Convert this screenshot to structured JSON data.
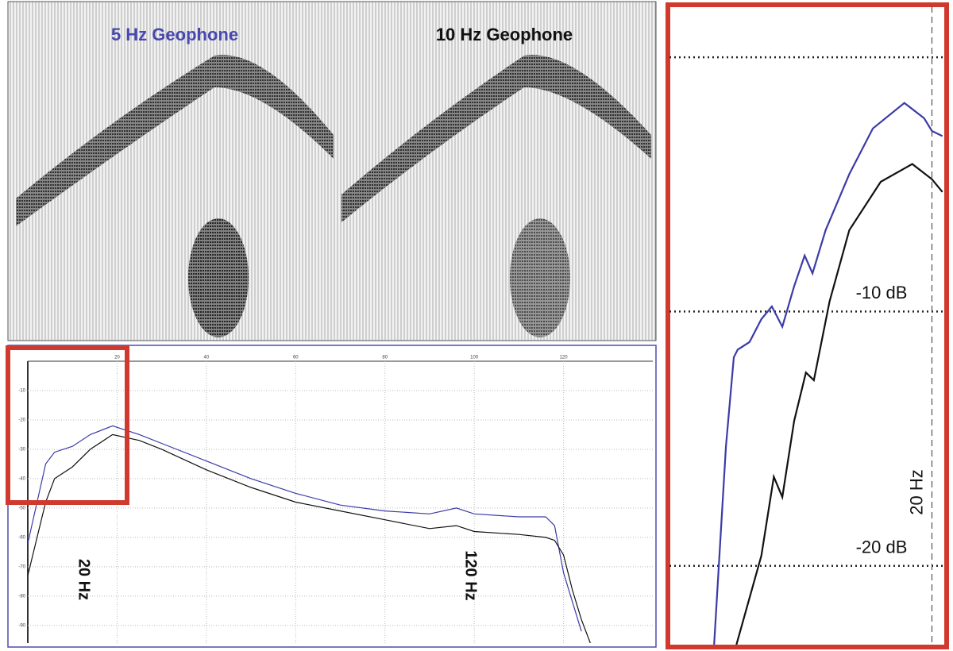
{
  "seismic": {
    "panels": [
      "5 Hz Geophone",
      "10 Hz Geophone"
    ]
  },
  "chart_data": [
    {
      "type": "line",
      "xlim": [
        0,
        140
      ],
      "xticks": [
        20,
        40,
        60,
        80,
        100,
        120
      ],
      "ylim": [
        -96,
        0
      ],
      "yticks": [
        -10,
        -20,
        -30,
        -40,
        -50,
        -60,
        -70,
        -80,
        -90
      ],
      "grid": true,
      "annotations": [
        "20 Hz",
        "120 Hz"
      ],
      "x": [
        0,
        4,
        6,
        10,
        14,
        19,
        25,
        30,
        40,
        50,
        60,
        70,
        80,
        90,
        96,
        100,
        110,
        116,
        118,
        120,
        122,
        124,
        126
      ],
      "series": [
        {
          "color": "#3b3ba8",
          "values": [
            -62,
            -35,
            -31,
            -29,
            -25,
            -22,
            -25,
            -28,
            -34,
            -40,
            -45,
            -49,
            -51,
            -52,
            -50,
            -52,
            -53,
            -53,
            -56,
            -72,
            -82,
            -92,
            null
          ]
        },
        {
          "color": "#111111",
          "values": [
            -73,
            -48,
            -40,
            -36,
            -30,
            -25,
            -27,
            -30,
            -37,
            -43,
            -48,
            -51,
            -54,
            -57,
            -56,
            -58,
            -59,
            -60,
            -61,
            -66,
            -78,
            -88,
            -96
          ]
        }
      ]
    },
    {
      "type": "line",
      "xlim": [
        0,
        21
      ],
      "ylim": [
        -23.1,
        2
      ],
      "gridlines": [
        0,
        -10,
        -20
      ],
      "yticks": [
        {
          "value": -10,
          "label": "-10 dB"
        },
        {
          "value": -20,
          "label": "-20 dB"
        }
      ],
      "xmarker": {
        "value": 20,
        "label": "20 Hz"
      },
      "series": [
        {
          "color": "#3b3ba8",
          "x": [
            3.4,
            4.3,
            4.9,
            5.2,
            6.1,
            7.0,
            7.8,
            8.6,
            9.5,
            10.3,
            10.9,
            11.9,
            13.7,
            15.5,
            17.9,
            19.4,
            20.0,
            20.8
          ],
          "values": [
            -23.1,
            -15.3,
            -11.8,
            -11.5,
            -11.2,
            -10.3,
            -9.8,
            -10.6,
            -9.0,
            -7.8,
            -8.5,
            -6.8,
            -4.6,
            -2.8,
            -1.8,
            -2.4,
            -2.9,
            -3.1
          ]
        },
        {
          "color": "#111111",
          "x": [
            5.1,
            7.0,
            7.95,
            8.6,
            9.5,
            10.4,
            11.0,
            12.2,
            13.7,
            16.1,
            18.5,
            20.0,
            20.8
          ],
          "values": [
            -23.1,
            -19.6,
            -16.5,
            -17.3,
            -14.3,
            -12.4,
            -12.7,
            -9.6,
            -6.8,
            -4.9,
            -4.2,
            -4.8,
            -5.3
          ]
        }
      ]
    }
  ]
}
